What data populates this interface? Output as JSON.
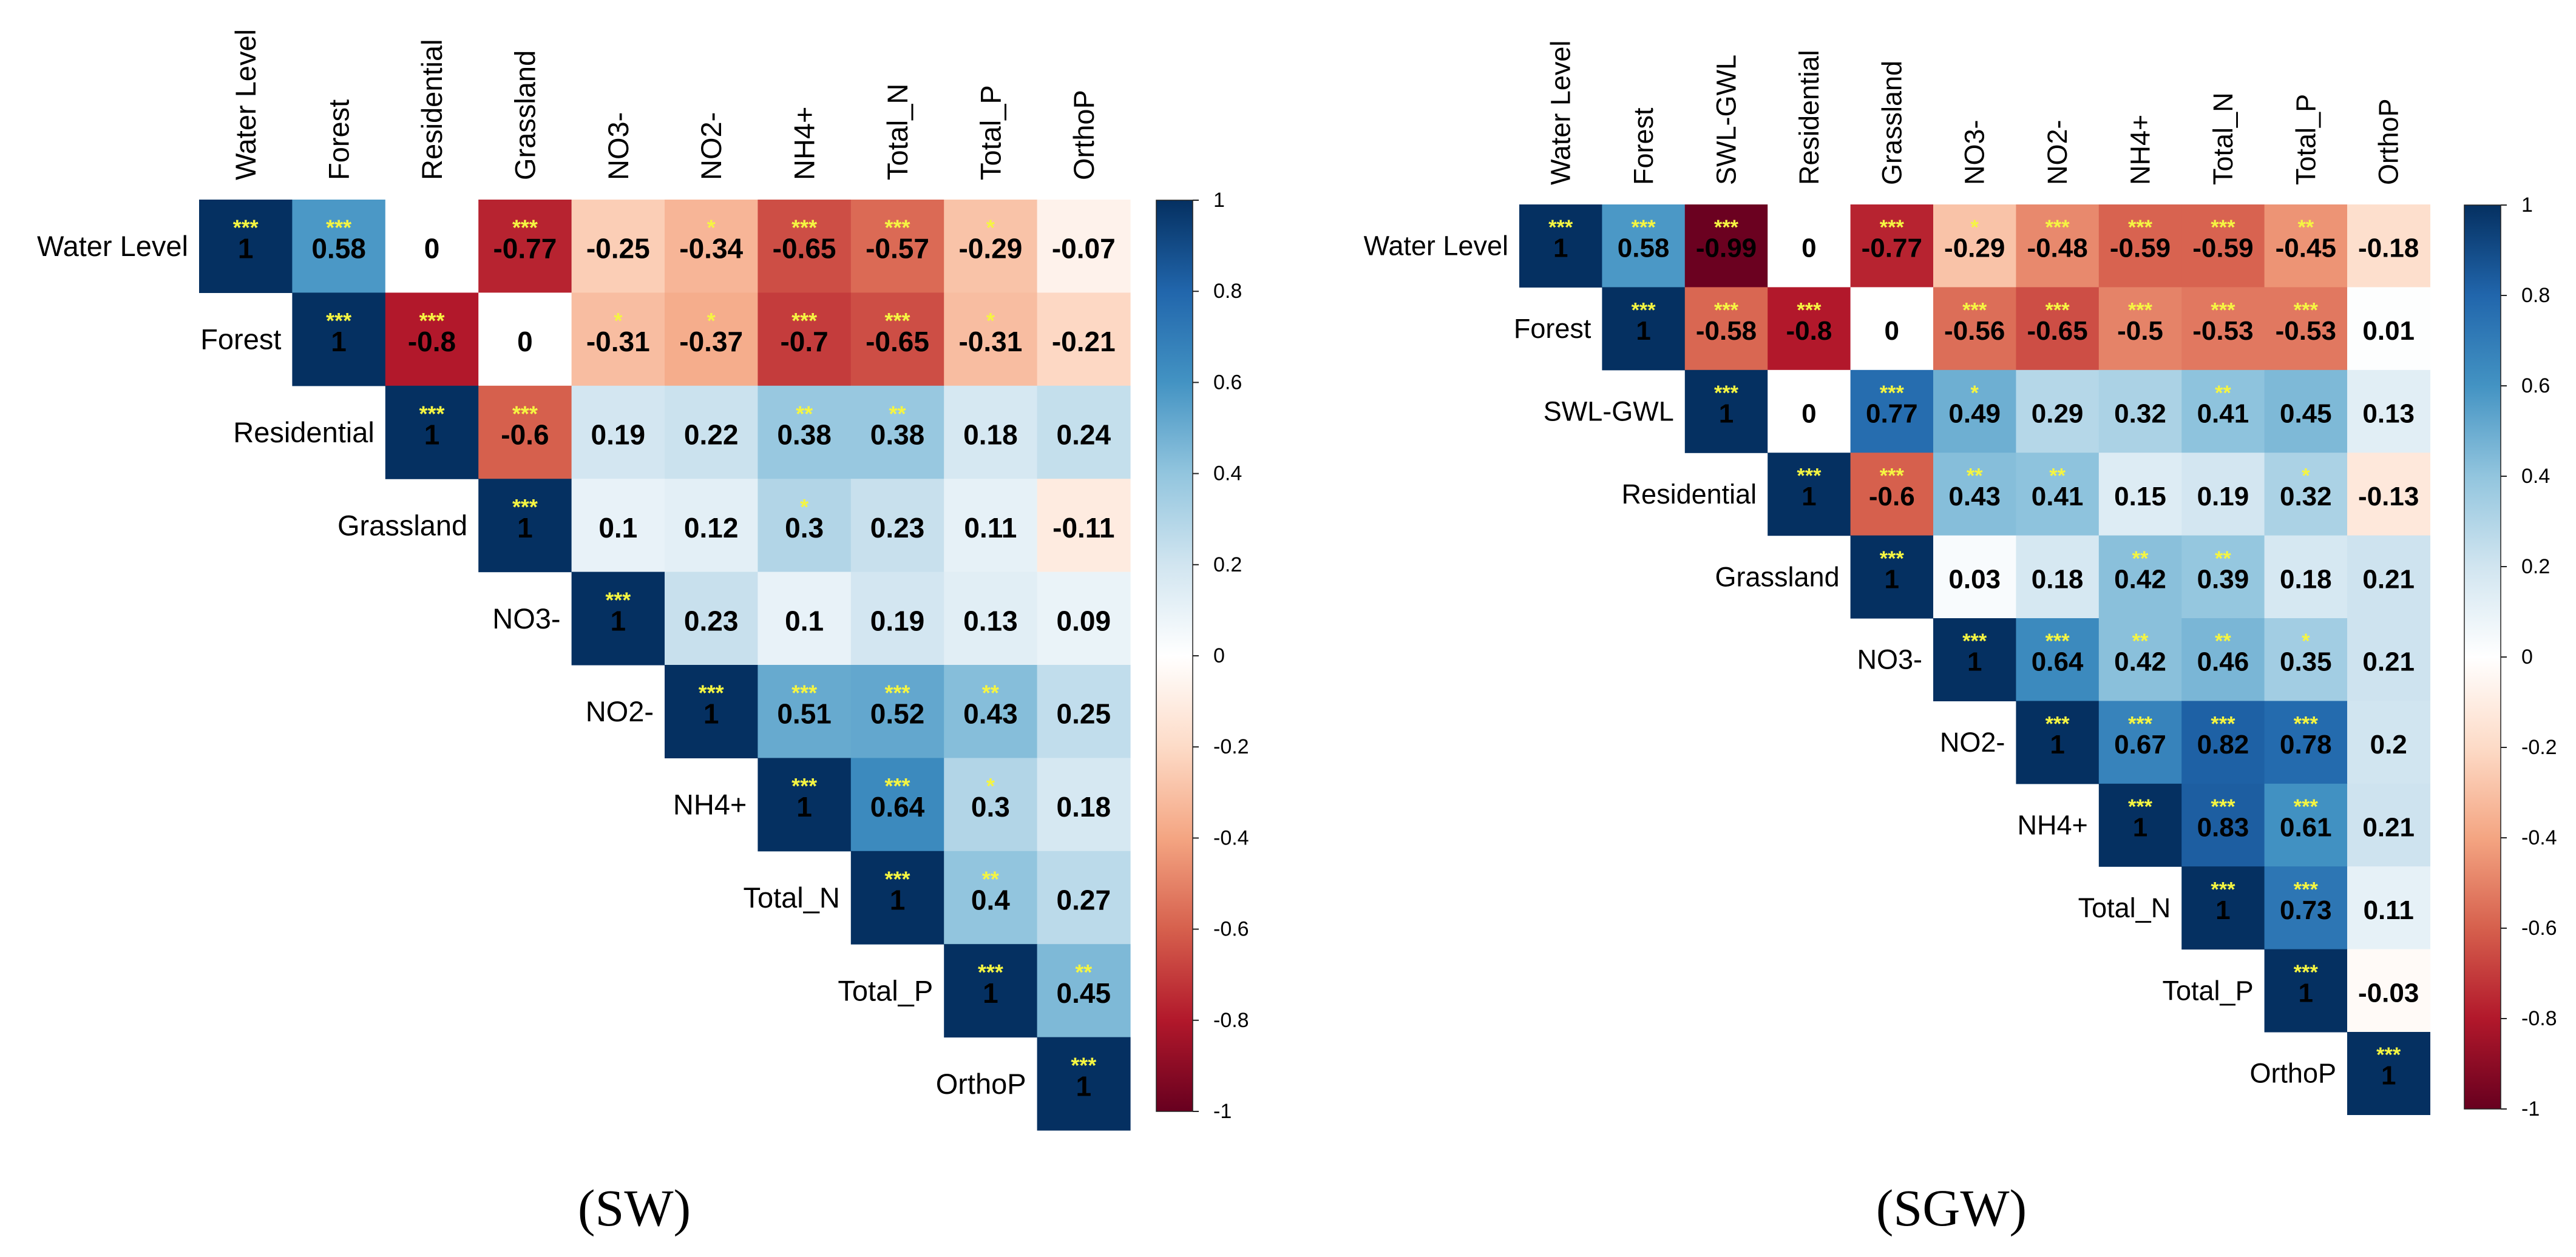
{
  "figure": {
    "colors": {
      "neg": "#67001f",
      "mid": "#ffffff",
      "pos": "#053061",
      "star": "#f5f542",
      "text": "#000000"
    },
    "colorbar_ticks": [
      "1",
      "0.8",
      "0.6",
      "0.4",
      "0.2",
      "0",
      "-0.2",
      "-0.4",
      "-0.6",
      "-0.8",
      "-1"
    ]
  },
  "chart_data": [
    {
      "type": "heatmap",
      "title": "(SW)",
      "variables": [
        "Water Level",
        "Forest",
        "Residential",
        "Grassland",
        "NO3-",
        "NO2-",
        "NH4+",
        "Total_N",
        "Total_P",
        "OrthoP"
      ],
      "values": [
        [
          1,
          0.58,
          0,
          -0.77,
          -0.25,
          -0.34,
          -0.65,
          -0.57,
          -0.29,
          -0.07
        ],
        [
          null,
          1,
          -0.8,
          0,
          -0.31,
          -0.37,
          -0.7,
          -0.65,
          -0.31,
          -0.21
        ],
        [
          null,
          null,
          1,
          -0.6,
          0.19,
          0.22,
          0.38,
          0.38,
          0.18,
          0.24
        ],
        [
          null,
          null,
          null,
          1,
          0.1,
          0.12,
          0.3,
          0.23,
          0.11,
          -0.11
        ],
        [
          null,
          null,
          null,
          null,
          1,
          0.23,
          0.1,
          0.19,
          0.13,
          0.09
        ],
        [
          null,
          null,
          null,
          null,
          null,
          1,
          0.51,
          0.52,
          0.43,
          0.25
        ],
        [
          null,
          null,
          null,
          null,
          null,
          null,
          1,
          0.64,
          0.3,
          0.18
        ],
        [
          null,
          null,
          null,
          null,
          null,
          null,
          null,
          1,
          0.4,
          0.27
        ],
        [
          null,
          null,
          null,
          null,
          null,
          null,
          null,
          null,
          1,
          0.45
        ],
        [
          null,
          null,
          null,
          null,
          null,
          null,
          null,
          null,
          null,
          1
        ]
      ],
      "significance": [
        [
          "***",
          "***",
          "",
          "***",
          "",
          "*",
          "***",
          "***",
          "*",
          ""
        ],
        [
          null,
          "***",
          "***",
          "",
          "*",
          "*",
          "***",
          "***",
          "*",
          ""
        ],
        [
          null,
          null,
          "***",
          "***",
          "",
          "",
          "**",
          "**",
          "",
          ""
        ],
        [
          null,
          null,
          null,
          "***",
          "",
          "",
          "*",
          "",
          "",
          ""
        ],
        [
          null,
          null,
          null,
          null,
          "***",
          "",
          "",
          "",
          "",
          ""
        ],
        [
          null,
          null,
          null,
          null,
          null,
          "***",
          "***",
          "***",
          "**",
          ""
        ],
        [
          null,
          null,
          null,
          null,
          null,
          null,
          "***",
          "***",
          "*",
          ""
        ],
        [
          null,
          null,
          null,
          null,
          null,
          null,
          null,
          "***",
          "**",
          ""
        ],
        [
          null,
          null,
          null,
          null,
          null,
          null,
          null,
          null,
          "***",
          "**"
        ],
        [
          null,
          null,
          null,
          null,
          null,
          null,
          null,
          null,
          null,
          "***"
        ]
      ],
      "color_range": [
        -1,
        1
      ]
    },
    {
      "type": "heatmap",
      "title": "(SGW)",
      "variables": [
        "Water Level",
        "Forest",
        "SWL-GWL",
        "Residential",
        "Grassland",
        "NO3-",
        "NO2-",
        "NH4+",
        "Total_N",
        "Total_P",
        "OrthoP"
      ],
      "values": [
        [
          1,
          0.58,
          -0.99,
          0,
          -0.77,
          -0.29,
          -0.48,
          -0.59,
          -0.59,
          -0.45,
          -0.18
        ],
        [
          null,
          1,
          -0.58,
          -0.8,
          0,
          -0.56,
          -0.65,
          -0.5,
          -0.53,
          -0.53,
          0.01
        ],
        [
          null,
          null,
          1,
          0,
          0.77,
          0.49,
          0.29,
          0.32,
          0.41,
          0.45,
          0.13
        ],
        [
          null,
          null,
          null,
          1,
          -0.6,
          0.43,
          0.41,
          0.15,
          0.19,
          0.32,
          -0.13
        ],
        [
          null,
          null,
          null,
          null,
          1,
          0.03,
          0.18,
          0.42,
          0.39,
          0.18,
          0.21
        ],
        [
          null,
          null,
          null,
          null,
          null,
          1,
          0.64,
          0.42,
          0.46,
          0.35,
          0.21
        ],
        [
          null,
          null,
          null,
          null,
          null,
          null,
          1,
          0.67,
          0.82,
          0.78,
          0.2
        ],
        [
          null,
          null,
          null,
          null,
          null,
          null,
          null,
          1,
          0.83,
          0.61,
          0.21
        ],
        [
          null,
          null,
          null,
          null,
          null,
          null,
          null,
          null,
          1,
          0.73,
          0.11
        ],
        [
          null,
          null,
          null,
          null,
          null,
          null,
          null,
          null,
          null,
          1,
          -0.03
        ],
        [
          null,
          null,
          null,
          null,
          null,
          null,
          null,
          null,
          null,
          null,
          1
        ]
      ],
      "significance": [
        [
          "***",
          "***",
          "***",
          "",
          "***",
          "*",
          "***",
          "***",
          "***",
          "**",
          ""
        ],
        [
          null,
          "***",
          "***",
          "***",
          "",
          "***",
          "***",
          "***",
          "***",
          "***",
          ""
        ],
        [
          null,
          null,
          "***",
          "",
          "***",
          "*",
          "",
          "",
          "**",
          "",
          ""
        ],
        [
          null,
          null,
          null,
          "***",
          "***",
          "**",
          "**",
          "",
          "",
          "*",
          ""
        ],
        [
          null,
          null,
          null,
          null,
          "***",
          "",
          "",
          "**",
          "**",
          "",
          ""
        ],
        [
          null,
          null,
          null,
          null,
          null,
          "***",
          "***",
          "**",
          "**",
          "*",
          ""
        ],
        [
          null,
          null,
          null,
          null,
          null,
          null,
          "***",
          "***",
          "***",
          "***",
          ""
        ],
        [
          null,
          null,
          null,
          null,
          null,
          null,
          null,
          "***",
          "***",
          "***",
          ""
        ],
        [
          null,
          null,
          null,
          null,
          null,
          null,
          null,
          null,
          "***",
          "***",
          ""
        ],
        [
          null,
          null,
          null,
          null,
          null,
          null,
          null,
          null,
          null,
          "***",
          ""
        ],
        [
          null,
          null,
          null,
          null,
          null,
          null,
          null,
          null,
          null,
          null,
          "***"
        ]
      ],
      "color_range": [
        -1,
        1
      ]
    }
  ]
}
